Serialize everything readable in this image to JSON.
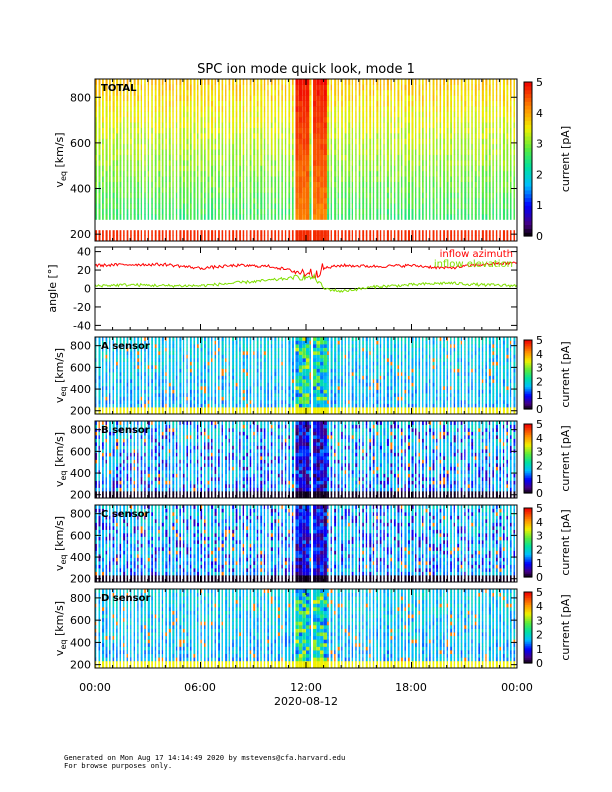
{
  "chart_data": {
    "type": "heatmap",
    "title": "SPC ion mode quick look, mode 1",
    "date_label": "2020-08-12",
    "x_tick_labels": [
      "00:00",
      "06:00",
      "12:00",
      "18:00",
      "00:00"
    ],
    "x_range_hours": [
      0,
      24
    ],
    "panels": [
      {
        "name": "TOTAL",
        "kind": "spectrogram",
        "ylabel_main": "v",
        "ylabel_sub": "eq",
        "ylabel_unit": "[km/s]",
        "ylim": [
          170,
          880
        ],
        "yticks": [
          200,
          400,
          600,
          800
        ],
        "colorbar_label": "current [pA]",
        "colorbar_range": [
          0,
          5
        ],
        "colorbar_ticks": [
          0,
          1,
          2,
          3,
          4,
          5
        ]
      },
      {
        "name": "angle",
        "kind": "line",
        "ylabel": "angle [°]",
        "ylim": [
          -45,
          45
        ],
        "yticks": [
          -40,
          -20,
          0,
          20,
          40
        ],
        "series": [
          {
            "name": "inflow azimuth",
            "color": "#ff0000",
            "x": [
              0,
              2,
              4,
              6,
              8,
              10,
              11.5,
              12.5,
              13,
              14,
              16,
              18,
              20,
              22,
              24
            ],
            "y": [
              25,
              26,
              26,
              22,
              25,
              24,
              18,
              16,
              22,
              25,
              24,
              25,
              22,
              26,
              28
            ]
          },
          {
            "name": "inflow elevation",
            "color": "#7fe000",
            "x": [
              0,
              2,
              4,
              6,
              8,
              10,
              11.5,
              12.5,
              13,
              14,
              16,
              18,
              20,
              22,
              24
            ],
            "y": [
              3,
              4,
              3,
              3,
              6,
              9,
              12,
              12,
              0,
              -3,
              2,
              4,
              6,
              4,
              3
            ]
          }
        ]
      },
      {
        "name": "A sensor",
        "kind": "spectrogram",
        "ylabel_main": "v",
        "ylabel_sub": "eq",
        "ylabel_unit": "[km/s]",
        "ylim": [
          170,
          880
        ],
        "yticks": [
          200,
          400,
          600,
          800
        ],
        "colorbar_label": "current [pA]",
        "colorbar_range": [
          0,
          5
        ],
        "colorbar_ticks": [
          0,
          1,
          2,
          3,
          4,
          5
        ]
      },
      {
        "name": "B sensor",
        "kind": "spectrogram",
        "ylabel_main": "v",
        "ylabel_sub": "eq",
        "ylabel_unit": "[km/s]",
        "ylim": [
          170,
          880
        ],
        "yticks": [
          200,
          400,
          600,
          800
        ],
        "colorbar_label": "current [pA]",
        "colorbar_range": [
          0,
          5
        ],
        "colorbar_ticks": [
          0,
          1,
          2,
          3,
          4,
          5
        ]
      },
      {
        "name": "C sensor",
        "kind": "spectrogram",
        "ylabel_main": "v",
        "ylabel_sub": "eq",
        "ylabel_unit": "[km/s]",
        "ylim": [
          170,
          880
        ],
        "yticks": [
          200,
          400,
          600,
          800
        ],
        "colorbar_label": "current [pA]",
        "colorbar_range": [
          0,
          5
        ],
        "colorbar_ticks": [
          0,
          1,
          2,
          3,
          4,
          5
        ]
      },
      {
        "name": "D sensor",
        "kind": "spectrogram",
        "ylabel_main": "v",
        "ylabel_sub": "eq",
        "ylabel_unit": "[km/s]",
        "ylim": [
          170,
          880
        ],
        "yticks": [
          200,
          400,
          600,
          800
        ],
        "colorbar_label": "current [pA]",
        "colorbar_range": [
          0,
          5
        ],
        "colorbar_ticks": [
          0,
          1,
          2,
          3,
          4,
          5
        ]
      }
    ],
    "high_current_intervals_hours": [
      [
        11.3,
        12.0
      ],
      [
        12.25,
        13.0
      ]
    ],
    "footer": [
      "Generated on Mon Aug 17 14:14:49 2020 by mstevens@cfa.harvard.edu",
      "For browse purposes only."
    ]
  }
}
